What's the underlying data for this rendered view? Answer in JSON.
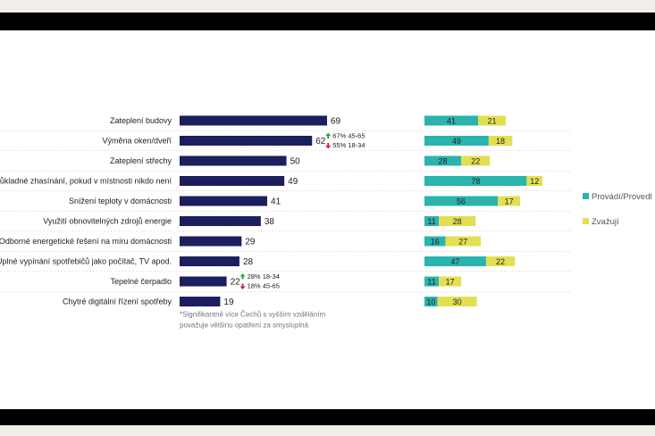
{
  "chart_data": [
    {
      "type": "bar",
      "orientation": "horizontal",
      "categories": [
        "Zateplení budovy",
        "Výměna oken/dveří",
        "Zateplení střechy",
        "Důkladné zhasínání, pokud v místnosti nikdo není",
        "Snížení teploty v domácnosti",
        "Využití obnovitelných zdrojů energie",
        "Odborné energetické řešení na míru domácnosti",
        "Úplné vypínání spotřebičů jako počítač, TV apod.",
        "Tepelné čerpadlo",
        "Chytré digitální řízení spotřeby"
      ],
      "values": [
        69,
        62,
        50,
        49,
        41,
        38,
        29,
        28,
        22,
        19
      ],
      "color": "#1b1f5e",
      "annotations": [
        {
          "category": "Výměna oken/dveří",
          "up": "67% 45-65",
          "down": "55% 18-34"
        },
        {
          "category": "Tepelné čerpadlo",
          "up": "28% 18-34",
          "down": "18% 45-65"
        }
      ],
      "note": "*Signifikantně více Čechů s vyšším vzděláním považuje většinu opatření za smysluplná"
    },
    {
      "type": "bar",
      "orientation": "horizontal",
      "stacked": true,
      "categories": [
        "Zateplení budovy",
        "Výměna oken/dveří",
        "Zateplení střechy",
        "Důkladné zhasínání, pokud v místnosti nikdo není",
        "Snížení teploty v domácnosti",
        "Využití obnovitelných zdrojů energie",
        "Odborné energetické řešení na míru domácnosti",
        "Úplné vypínání spotřebičů jako počítač, TV apod.",
        "Tepelné čerpadlo",
        "Chytré digitální řízení spotřeby"
      ],
      "series": [
        {
          "name": "Provádí/Provedl",
          "color": "#2bb3ad",
          "values": [
            41,
            49,
            28,
            78,
            56,
            11,
            16,
            47,
            11,
            10
          ]
        },
        {
          "name": "Zvažují",
          "color": "#e3df52",
          "values": [
            21,
            18,
            22,
            12,
            17,
            28,
            27,
            22,
            17,
            30
          ]
        }
      ],
      "legend": "right"
    }
  ]
}
